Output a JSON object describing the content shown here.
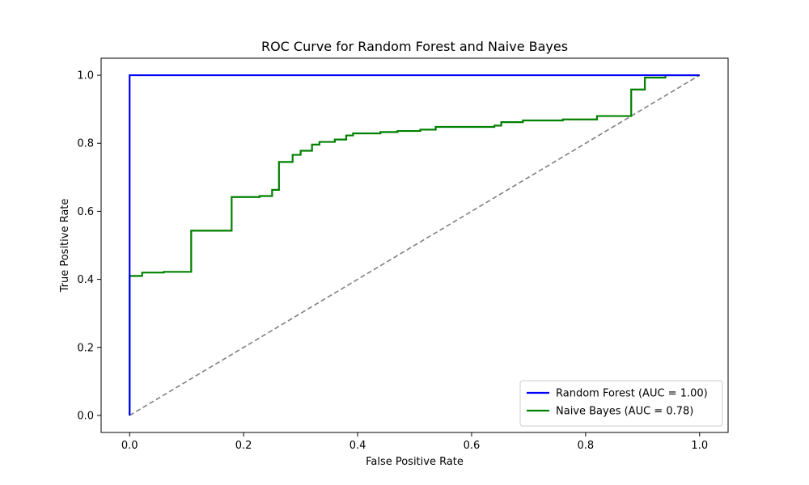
{
  "chart_data": {
    "type": "line",
    "title": "ROC Curve for Random Forest and Naive Bayes",
    "xlabel": "False Positive Rate",
    "ylabel": "True Positive Rate",
    "xlim": [
      -0.05,
      1.05
    ],
    "ylim": [
      -0.05,
      1.05
    ],
    "xticks": [
      "0.0",
      "0.2",
      "0.4",
      "0.6",
      "0.8",
      "1.0"
    ],
    "yticks": [
      "0.0",
      "0.2",
      "0.4",
      "0.6",
      "0.8",
      "1.0"
    ],
    "grid": false,
    "legend_position": "lower-right",
    "series": [
      {
        "name": "Random Forest (AUC = 1.00)",
        "color": "#0000ff",
        "style": "solid",
        "points": [
          [
            0.0,
            0.0
          ],
          [
            0.0,
            0.41
          ],
          [
            0.0,
            1.0
          ],
          [
            0.94,
            1.0
          ],
          [
            1.0,
            1.0
          ]
        ]
      },
      {
        "name": "Naive Bayes (AUC = 0.78)",
        "color": "#008000",
        "style": "solid",
        "points": [
          [
            0.0,
            0.0
          ],
          [
            0.0,
            0.41
          ],
          [
            0.022,
            0.41
          ],
          [
            0.022,
            0.42
          ],
          [
            0.06,
            0.42
          ],
          [
            0.06,
            0.422
          ],
          [
            0.108,
            0.422
          ],
          [
            0.108,
            0.543
          ],
          [
            0.179,
            0.543
          ],
          [
            0.179,
            0.642
          ],
          [
            0.228,
            0.642
          ],
          [
            0.228,
            0.645
          ],
          [
            0.25,
            0.645
          ],
          [
            0.25,
            0.663
          ],
          [
            0.262,
            0.663
          ],
          [
            0.262,
            0.745
          ],
          [
            0.286,
            0.745
          ],
          [
            0.286,
            0.766
          ],
          [
            0.3,
            0.766
          ],
          [
            0.3,
            0.778
          ],
          [
            0.32,
            0.778
          ],
          [
            0.32,
            0.796
          ],
          [
            0.333,
            0.796
          ],
          [
            0.333,
            0.804
          ],
          [
            0.36,
            0.804
          ],
          [
            0.36,
            0.811
          ],
          [
            0.38,
            0.811
          ],
          [
            0.38,
            0.823
          ],
          [
            0.392,
            0.823
          ],
          [
            0.392,
            0.829
          ],
          [
            0.44,
            0.829
          ],
          [
            0.44,
            0.833
          ],
          [
            0.47,
            0.833
          ],
          [
            0.47,
            0.836
          ],
          [
            0.51,
            0.836
          ],
          [
            0.51,
            0.84
          ],
          [
            0.537,
            0.84
          ],
          [
            0.537,
            0.848
          ],
          [
            0.64,
            0.848
          ],
          [
            0.64,
            0.852
          ],
          [
            0.652,
            0.852
          ],
          [
            0.652,
            0.862
          ],
          [
            0.69,
            0.862
          ],
          [
            0.69,
            0.867
          ],
          [
            0.76,
            0.867
          ],
          [
            0.76,
            0.87
          ],
          [
            0.82,
            0.87
          ],
          [
            0.82,
            0.88
          ],
          [
            0.88,
            0.88
          ],
          [
            0.88,
            0.958
          ],
          [
            0.904,
            0.958
          ],
          [
            0.904,
            0.993
          ],
          [
            0.94,
            0.993
          ],
          [
            0.94,
            1.0
          ],
          [
            1.0,
            1.0
          ]
        ]
      },
      {
        "name": "",
        "color": "#808080",
        "style": "dashed",
        "points": [
          [
            0.0,
            0.0
          ],
          [
            1.0,
            1.0
          ]
        ]
      }
    ]
  }
}
